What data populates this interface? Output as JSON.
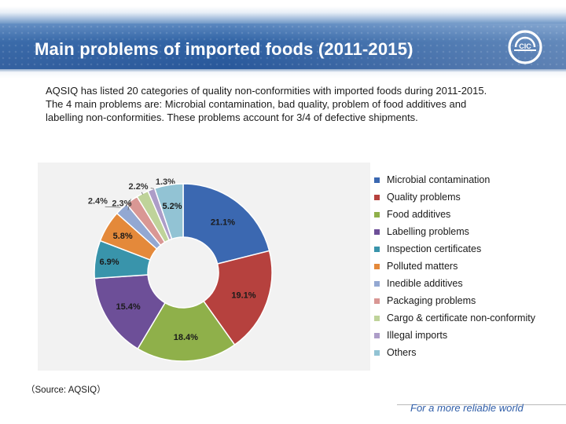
{
  "header": {
    "title": "Main problems of imported foods (2011-2015)",
    "logo_text": "CIC",
    "logo_icon": "cic-logo-icon"
  },
  "intro_text": "AQSIQ has listed 20 categories of quality non-conformities with imported foods during 2011-2015. The 4 main problems are: Microbial contamination, bad quality, problem of food additives and labelling non-conformities. These problems account for 3/4 of defective shipments.",
  "chart_data": {
    "type": "pie",
    "donut": true,
    "title": "",
    "categories": [
      "Microbial contamination",
      "Quality problems",
      "Food additives",
      "Labelling problems",
      "Inspection certificates",
      "Polluted matters",
      "Inedible additives",
      "Packaging problems",
      "Cargo & certificate non-conformity",
      "Illegal imports",
      "Others"
    ],
    "values": [
      21.1,
      19.1,
      18.4,
      15.4,
      6.9,
      5.8,
      2.4,
      2.3,
      2.2,
      1.3,
      5.2
    ],
    "labels": [
      "21.1%",
      "19.1%",
      "18.4%",
      "15.4%",
      "6.9%",
      "5.8%",
      "2.4%",
      "2.3%",
      "2.2%",
      "1.3%",
      "5.2%"
    ],
    "colors": [
      "#3b68b1",
      "#b6413e",
      "#8fb04a",
      "#6d4f98",
      "#3994ab",
      "#e4893a",
      "#93a8d2",
      "#d99794",
      "#bfd39a",
      "#ad9dc8",
      "#92c3d4"
    ],
    "legend_position": "right"
  },
  "source": "（Source: AQSIQ）",
  "footer": {
    "tagline": "For a more reliable world"
  }
}
